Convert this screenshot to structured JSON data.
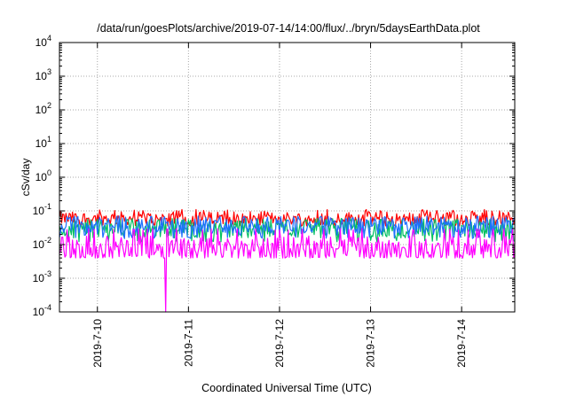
{
  "chart_data": {
    "type": "line",
    "title": "/data/run/goesPlots/archive/2019-07-14/14:00/flux/../bryn/5daysEarthData.plot",
    "xlabel": "Coordinated Universal Time (UTC)",
    "ylabel": "cSv/day",
    "y_scale": "log",
    "ylim": [
      0.0001,
      10000
    ],
    "y_ticks": [
      {
        "value": 0.0001,
        "base": "10",
        "exp": "-4"
      },
      {
        "value": 0.001,
        "base": "10",
        "exp": "-3"
      },
      {
        "value": 0.01,
        "base": "10",
        "exp": "-2"
      },
      {
        "value": 0.1,
        "base": "10",
        "exp": "-1"
      },
      {
        "value": 1,
        "base": "10",
        "exp": "0"
      },
      {
        "value": 10,
        "base": "10",
        "exp": "1"
      },
      {
        "value": 100,
        "base": "10",
        "exp": "2"
      },
      {
        "value": 1000,
        "base": "10",
        "exp": "3"
      },
      {
        "value": 10000,
        "base": "10",
        "exp": "4"
      }
    ],
    "xlim": [
      "2019-07-09 14:00",
      "2019-07-14 14:00"
    ],
    "x_ticks": [
      {
        "date": "2019-07-10 00:00",
        "label": "2019-7-10"
      },
      {
        "date": "2019-07-11 00:00",
        "label": "2019-7-11"
      },
      {
        "date": "2019-07-12 00:00",
        "label": "2019-7-12"
      },
      {
        "date": "2019-07-13 00:00",
        "label": "2019-7-13"
      },
      {
        "date": "2019-07-14 00:00",
        "label": "2019-7-14"
      }
    ],
    "grid": true,
    "legend": "none",
    "series": [
      {
        "color": "#ff0000",
        "typical": 0.06,
        "min": 0.035,
        "max": 0.11
      },
      {
        "color": "#00c060",
        "typical": 0.03,
        "min": 0.012,
        "max": 0.06
      },
      {
        "color": "#1e6fff",
        "typical": 0.035,
        "min": 0.015,
        "max": 0.07
      },
      {
        "color": "#ff00ff",
        "typical": 0.008,
        "min": 0.004,
        "max": 0.03,
        "dropout": {
          "date": "2019-07-10 18:00",
          "value": 0.0001
        }
      }
    ]
  }
}
